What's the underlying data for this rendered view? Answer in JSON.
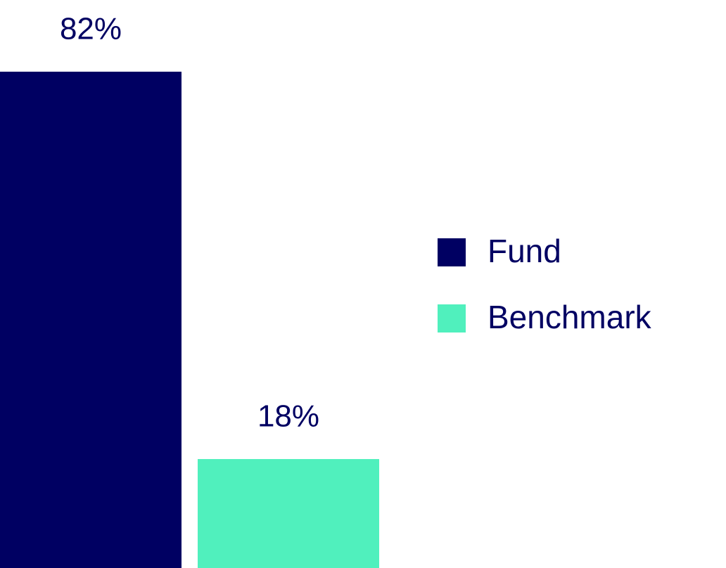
{
  "chart_data": {
    "type": "bar",
    "categories": [
      null
    ],
    "series": [
      {
        "name": "Fund",
        "color": "#000062",
        "values": [
          82
        ],
        "value_labels": [
          "82%"
        ]
      },
      {
        "name": "Benchmark",
        "color": "#50f0bd",
        "values": [
          18
        ],
        "value_labels": [
          "18%"
        ]
      }
    ],
    "legend": "right"
  }
}
